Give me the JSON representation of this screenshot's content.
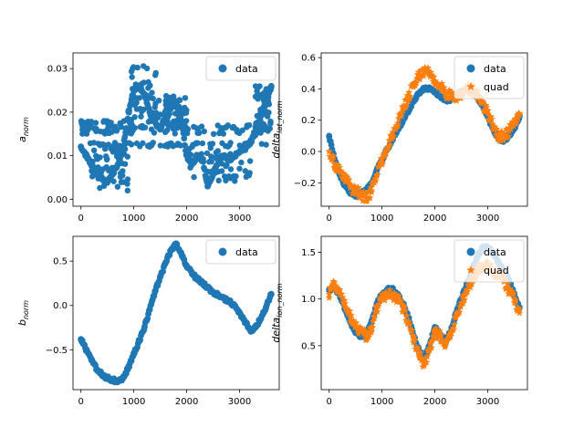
{
  "figure": {
    "background": "#ffffff"
  },
  "colors": {
    "data": "#1f77b4",
    "quad": "#ff7f0e"
  },
  "chart_data": [
    {
      "id": "a_norm",
      "type": "scatter",
      "ylabel_base": "a",
      "ylabel_sub": "norm",
      "xlim": [
        -150,
        3750
      ],
      "ylim": [
        -0.0016,
        0.0336
      ],
      "xticks": [
        0,
        1000,
        2000,
        3000
      ],
      "yticks": [
        0.0,
        0.01,
        0.02,
        0.03
      ],
      "ytick_labels": [
        "0.00",
        "0.01",
        "0.02",
        "0.03"
      ],
      "legend": {
        "placement": "upper right",
        "entries": [
          "data"
        ]
      },
      "series": [
        {
          "name": "data",
          "marker": "circle",
          "color": "#1f77b4",
          "x": [
            0,
            100,
            200,
            300,
            400,
            500,
            600,
            700,
            800,
            900,
            1000,
            1100,
            1200,
            1300,
            1400,
            1500,
            1600,
            1700,
            1800,
            1900,
            2000,
            2100,
            2200,
            2300,
            2400,
            2500,
            2600,
            2700,
            2800,
            2900,
            3000,
            3100,
            3200,
            3300,
            3400,
            3500,
            3600
          ],
          "y": [
            0.012,
            0.01,
            0.008,
            0.006,
            0.005,
            0.004,
            0.006,
            0.008,
            0.012,
            0.02,
            0.025,
            0.026,
            0.024,
            0.02,
            0.018,
            0.016,
            0.02,
            0.023,
            0.022,
            0.018,
            0.01,
            0.008,
            0.01,
            0.009,
            0.003,
            0.006,
            0.009,
            0.01,
            0.009,
            0.01,
            0.011,
            0.012,
            0.013,
            0.015,
            0.02,
            0.022,
            0.026
          ],
          "bands": [
            {
              "x": [
                0,
                3600
              ],
              "y": [
                0.012,
                0.013
              ]
            },
            {
              "x": [
                0,
                1000
              ],
              "y": [
                0.015,
                0.018
              ]
            },
            {
              "x": [
                200,
                900
              ],
              "y": [
                0.002,
                0.013
              ]
            },
            {
              "x": [
                900,
                1500
              ],
              "y": [
                0.016,
                0.031
              ]
            },
            {
              "x": [
                1300,
                3550
              ],
              "y": [
                0.015,
                0.017
              ]
            },
            {
              "x": [
                1600,
                2000
              ],
              "y": [
                0.016,
                0.024
              ]
            },
            {
              "x": [
                2000,
                3200
              ],
              "y": [
                0.004,
                0.012
              ]
            },
            {
              "x": [
                3300,
                3600
              ],
              "y": [
                0.016,
                0.026
              ]
            }
          ]
        }
      ]
    },
    {
      "id": "delta_lat",
      "type": "scatter",
      "ylabel_base": "delta",
      "ylabel_sub": "lat_norm",
      "xlim": [
        -150,
        3750
      ],
      "ylim": [
        -0.35,
        0.63
      ],
      "xticks": [
        0,
        1000,
        2000,
        3000
      ],
      "yticks": [
        -0.2,
        0.0,
        0.2,
        0.4,
        0.6
      ],
      "ytick_labels": [
        "−0.2",
        "0.0",
        "0.2",
        "0.4",
        "0.6"
      ],
      "legend": {
        "placement": "upper right",
        "entries": [
          "data",
          "quad"
        ]
      },
      "series": [
        {
          "name": "data",
          "marker": "circle",
          "color": "#1f77b4",
          "x": [
            0,
            100,
            200,
            300,
            400,
            500,
            600,
            700,
            800,
            900,
            1000,
            1100,
            1200,
            1300,
            1400,
            1500,
            1600,
            1700,
            1800,
            1900,
            2000,
            2100,
            2200,
            2300,
            2400,
            2500,
            2600,
            2700,
            2800,
            2900,
            3000,
            3100,
            3200,
            3300,
            3400,
            3500,
            3600
          ],
          "y": [
            0.1,
            -0.05,
            -0.15,
            -0.22,
            -0.27,
            -0.28,
            -0.27,
            -0.25,
            -0.2,
            -0.12,
            -0.05,
            0.02,
            0.08,
            0.14,
            0.2,
            0.26,
            0.32,
            0.37,
            0.4,
            0.4,
            0.38,
            0.35,
            0.33,
            0.33,
            0.35,
            0.38,
            0.4,
            0.38,
            0.35,
            0.3,
            0.22,
            0.15,
            0.08,
            0.07,
            0.1,
            0.15,
            0.22
          ]
        },
        {
          "name": "quad",
          "marker": "star",
          "color": "#ff7f0e",
          "x": [
            0,
            100,
            200,
            300,
            400,
            500,
            600,
            700,
            800,
            900,
            1000,
            1100,
            1200,
            1300,
            1400,
            1500,
            1600,
            1700,
            1800,
            1900,
            2000,
            2100,
            2200,
            2300,
            2400,
            2500,
            2600,
            2700,
            2800,
            2900,
            3000,
            3100,
            3200,
            3300,
            3400,
            3500,
            3600
          ],
          "y": [
            0.0,
            -0.08,
            -0.12,
            -0.18,
            -0.22,
            -0.25,
            -0.28,
            -0.3,
            -0.25,
            -0.15,
            -0.05,
            0.02,
            0.1,
            0.18,
            0.28,
            0.35,
            0.42,
            0.48,
            0.52,
            0.5,
            0.45,
            0.42,
            0.38,
            0.35,
            0.34,
            0.37,
            0.4,
            0.39,
            0.36,
            0.31,
            0.24,
            0.16,
            0.1,
            0.1,
            0.13,
            0.18,
            0.24
          ]
        }
      ]
    },
    {
      "id": "b_norm",
      "type": "scatter",
      "ylabel_base": "b",
      "ylabel_sub": "norm",
      "xlim": [
        -150,
        3750
      ],
      "ylim": [
        -0.95,
        0.78
      ],
      "xticks": [
        0,
        1000,
        2000,
        3000
      ],
      "yticks": [
        -0.5,
        0.0,
        0.5
      ],
      "ytick_labels": [
        "−0.5",
        "0.0",
        "0.5"
      ],
      "legend": {
        "placement": "upper right",
        "entries": [
          "data"
        ]
      },
      "series": [
        {
          "name": "data",
          "marker": "circle",
          "color": "#1f77b4",
          "x": [
            0,
            100,
            200,
            300,
            400,
            500,
            600,
            700,
            800,
            900,
            1000,
            1100,
            1200,
            1300,
            1400,
            1500,
            1600,
            1700,
            1800,
            1900,
            2000,
            2100,
            2200,
            2300,
            2400,
            2500,
            2600,
            2700,
            2800,
            2900,
            3000,
            3100,
            3200,
            3300,
            3400,
            3500,
            3600
          ],
          "y": [
            -0.38,
            -0.5,
            -0.62,
            -0.72,
            -0.78,
            -0.82,
            -0.84,
            -0.86,
            -0.82,
            -0.7,
            -0.55,
            -0.4,
            -0.25,
            -0.05,
            0.15,
            0.32,
            0.48,
            0.62,
            0.7,
            0.58,
            0.45,
            0.36,
            0.3,
            0.25,
            0.2,
            0.15,
            0.12,
            0.08,
            0.05,
            0.0,
            -0.08,
            -0.18,
            -0.28,
            -0.25,
            -0.15,
            -0.02,
            0.13
          ]
        }
      ]
    },
    {
      "id": "delta_lon",
      "type": "scatter",
      "ylabel_base": "delta",
      "ylabel_sub": "lon_norm",
      "xlim": [
        -150,
        3750
      ],
      "ylim": [
        0.03,
        1.67
      ],
      "xticks": [
        0,
        1000,
        2000,
        3000
      ],
      "yticks": [
        0.5,
        1.0,
        1.5
      ],
      "ytick_labels": [
        "0.5",
        "1.0",
        "1.5"
      ],
      "legend": {
        "placement": "upper right",
        "entries": [
          "data",
          "quad"
        ]
      },
      "series": [
        {
          "name": "data",
          "marker": "circle",
          "color": "#1f77b4",
          "x": [
            0,
            100,
            200,
            300,
            400,
            500,
            600,
            700,
            800,
            900,
            1000,
            1100,
            1200,
            1300,
            1400,
            1500,
            1600,
            1700,
            1800,
            1900,
            2000,
            2100,
            2200,
            2300,
            2400,
            2500,
            2600,
            2700,
            2800,
            2900,
            3000,
            3100,
            3200,
            3300,
            3400,
            3500,
            3600
          ],
          "y": [
            1.1,
            1.12,
            1.05,
            0.9,
            0.75,
            0.65,
            0.6,
            0.62,
            0.75,
            0.95,
            1.05,
            1.1,
            1.1,
            1.05,
            0.95,
            0.8,
            0.6,
            0.45,
            0.38,
            0.5,
            0.7,
            0.62,
            0.55,
            0.65,
            0.85,
            1.0,
            1.15,
            1.3,
            1.45,
            1.55,
            1.55,
            1.5,
            1.4,
            1.3,
            1.2,
            1.05,
            0.9
          ]
        },
        {
          "name": "quad",
          "marker": "star",
          "color": "#ff7f0e",
          "x": [
            0,
            100,
            200,
            300,
            400,
            500,
            600,
            700,
            800,
            900,
            1000,
            1100,
            1200,
            1300,
            1400,
            1500,
            1600,
            1700,
            1800,
            1900,
            2000,
            2100,
            2200,
            2300,
            2400,
            2500,
            2600,
            2700,
            2800,
            2900,
            3000,
            3100,
            3200,
            3300,
            3400,
            3500,
            3600
          ],
          "y": [
            1.05,
            1.15,
            1.1,
            0.95,
            0.8,
            0.7,
            0.65,
            0.6,
            0.7,
            0.9,
            1.0,
            1.05,
            1.05,
            1.0,
            0.9,
            0.75,
            0.55,
            0.4,
            0.3,
            0.45,
            0.65,
            0.6,
            0.5,
            0.6,
            0.8,
            0.95,
            1.1,
            1.2,
            1.3,
            1.35,
            1.35,
            1.3,
            1.25,
            1.2,
            1.1,
            1.0,
            0.85
          ]
        }
      ]
    }
  ]
}
